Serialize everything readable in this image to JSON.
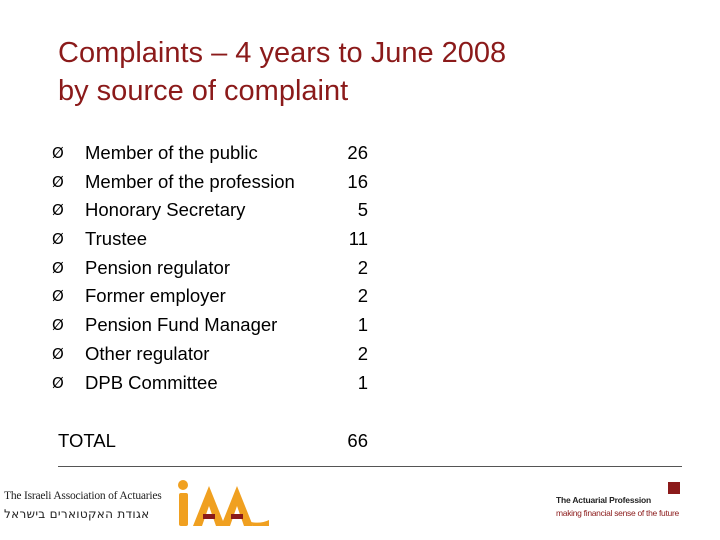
{
  "title": {
    "line1": "Complaints – 4 years to June 2008",
    "line2": "by source of complaint"
  },
  "bullet_glyph": "Ø",
  "items": [
    {
      "label": "Member of the public",
      "value": "26"
    },
    {
      "label": "Member of the profession",
      "value": "16"
    },
    {
      "label": "Honorary Secretary",
      "value": "5"
    },
    {
      "label": "Trustee",
      "value": "11"
    },
    {
      "label": "Pension regulator",
      "value": "2"
    },
    {
      "label": "Former employer",
      "value": "2"
    },
    {
      "label": "Pension Fund Manager",
      "value": "1"
    },
    {
      "label": "Other regulator",
      "value": "2"
    },
    {
      "label": "DPB Committee",
      "value": "1"
    }
  ],
  "total": {
    "label": "TOTAL",
    "value": "66"
  },
  "footer": {
    "iaa_name_en": "The Israeli Association of Actuaries",
    "iaa_name_he": "אגודת האקטוארים בישראל",
    "ap_name": "The Actuarial Profession",
    "ap_tagline": "making financial sense of the future"
  },
  "colors": {
    "title": "#8b1a1a",
    "accent_orange": "#f0a020",
    "accent_red": "#8b1a1a"
  },
  "icons": {
    "iaa_logo": "iaa-logo-icon",
    "ap_logo": "actuarial-profession-square-icon"
  }
}
